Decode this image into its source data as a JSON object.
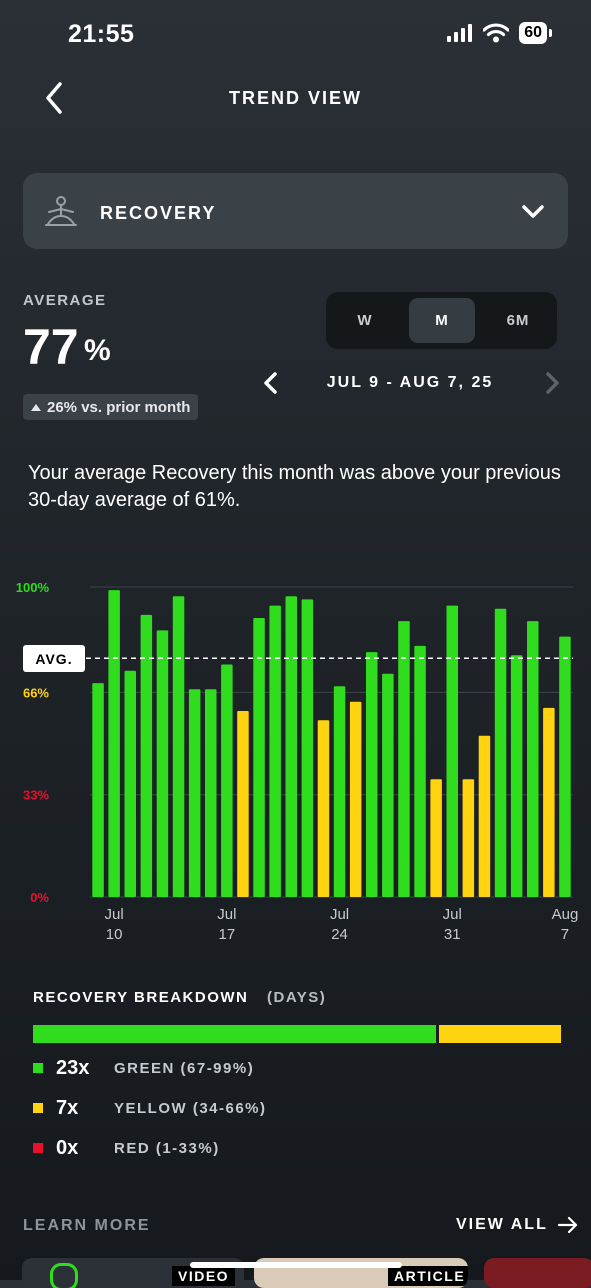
{
  "status_bar": {
    "time": "21:55",
    "battery": "60"
  },
  "header": {
    "title": "TREND VIEW"
  },
  "metric_selector": {
    "label": "RECOVERY"
  },
  "average": {
    "label": "AVERAGE",
    "value": "77",
    "unit": "%",
    "delta": "26% vs. prior month"
  },
  "period": {
    "options": [
      "W",
      "M",
      "6M"
    ],
    "selected": "M",
    "date_range": "JUL 9 - AUG 7, 25"
  },
  "description": "Your average Recovery this month was above your previous 30-day average of 61%.",
  "chart_data": {
    "type": "bar",
    "x_tick_labels": [
      [
        "Jul",
        "10"
      ],
      [
        "Jul",
        "17"
      ],
      [
        "Jul",
        "24"
      ],
      [
        "Jul",
        "31"
      ],
      [
        "Aug",
        "7"
      ]
    ],
    "y_tick_labels": [
      "100%",
      "66%",
      "33%",
      "0%"
    ],
    "y_tick_values": [
      100,
      66,
      33,
      0
    ],
    "ylim": [
      0,
      100
    ],
    "average_line": 77,
    "average_label": "AVG.",
    "categories": [
      "Jul 9",
      "Jul 10",
      "Jul 11",
      "Jul 12",
      "Jul 13",
      "Jul 14",
      "Jul 15",
      "Jul 16",
      "Jul 17",
      "Jul 18",
      "Jul 19",
      "Jul 20",
      "Jul 21",
      "Jul 22",
      "Jul 23",
      "Jul 24",
      "Jul 25",
      "Jul 26",
      "Jul 27",
      "Jul 28",
      "Jul 29",
      "Jul 30",
      "Jul 31",
      "Aug 1",
      "Aug 2",
      "Aug 3",
      "Aug 4",
      "Aug 5",
      "Aug 6",
      "Aug 7"
    ],
    "values": [
      69,
      99,
      73,
      91,
      86,
      97,
      67,
      67,
      75,
      60,
      90,
      94,
      97,
      96,
      57,
      68,
      63,
      79,
      72,
      89,
      81,
      38,
      94,
      38,
      52,
      93,
      78,
      89,
      61,
      84
    ],
    "colors": {
      "green": "#2fdc1e",
      "yellow": "#ffd30f",
      "red": "#e8102c"
    },
    "y_label_colors": [
      "#2fdc1e",
      "#ffd30f",
      "#e8102c",
      "#e8102c"
    ]
  },
  "breakdown": {
    "title": "RECOVERY BREAKDOWN",
    "subtitle": "(DAYS)",
    "items": [
      {
        "count": "23x",
        "label": "GREEN (67-99%)",
        "days": 23,
        "color": "#2fdc1e"
      },
      {
        "count": "7x",
        "label": "YELLOW (34-66%)",
        "days": 7,
        "color": "#ffd30f"
      },
      {
        "count": "0x",
        "label": "RED (1-33%)",
        "days": 0,
        "color": "#e8102c"
      }
    ]
  },
  "learn_more": {
    "label": "LEARN MORE",
    "view_all": "VIEW ALL",
    "cards": [
      "VIDEO",
      "ARTICLE"
    ]
  }
}
